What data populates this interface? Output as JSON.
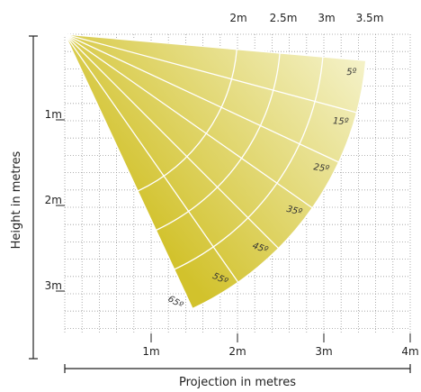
{
  "diagram": {
    "x_axis_title": "Projection in metres",
    "y_axis_title": "Height in metres",
    "x_bottom_ticks": [
      "1m",
      "2m",
      "3m",
      "4m"
    ],
    "x_top_ticks": [
      "2m",
      "2.5m",
      "3m",
      "3.5m"
    ],
    "y_ticks": [
      "1m",
      "2m",
      "3m"
    ],
    "angle_labels": [
      "5º",
      "15º",
      "25º",
      "35º",
      "45º",
      "55º",
      "65º"
    ],
    "beam_angles_deg": [
      5,
      15,
      25,
      35,
      45,
      55,
      65
    ],
    "arc_radii_m": [
      2,
      2.5,
      3,
      3.5
    ],
    "colors": {
      "beam_light": "#f4f1c6",
      "beam_dark": "#d2c22c",
      "grid": "#9a9a9a",
      "beam_lines": "#ffffff",
      "axis": "#222222"
    }
  }
}
